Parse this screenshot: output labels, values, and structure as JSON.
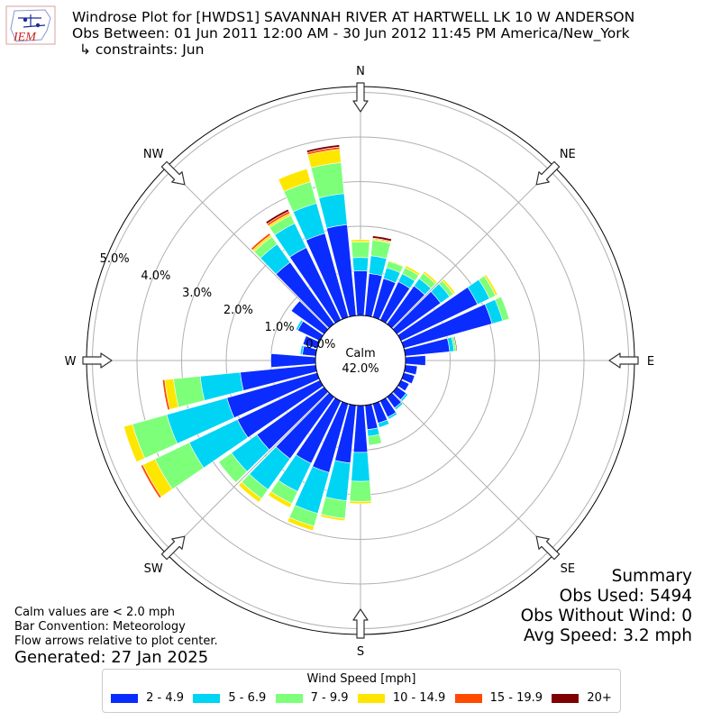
{
  "header": {
    "line1": "Windrose Plot for [HWDS1] SAVANNAH RIVER  AT HARTWELL LK 10 W ANDERSON",
    "line2": "Obs Between: 01 Jun 2011 12:00 AM - 30 Jun 2012 11:45 PM America/New_York",
    "line3": "↳ constraints: Jun"
  },
  "logo": {
    "text": "IEM",
    "color": "#cc2222"
  },
  "summary": {
    "title": "Summary",
    "obs_used": "Obs Used: 5494",
    "obs_without_wind": "Obs Without Wind: 0",
    "avg_speed": "Avg Speed: 3.2 mph"
  },
  "notes": {
    "calm": "Calm values are < 2.0 mph",
    "convention": "Bar Convention: Meteorology",
    "flow": "Flow arrows relative to plot center."
  },
  "generated": "Generated: 27 Jan 2025",
  "chart_data": {
    "type": "windrose",
    "calm": {
      "label": "Calm",
      "value": "42.0%"
    },
    "radial_ticks": [
      "0.0%",
      "1.0%",
      "2.0%",
      "3.0%",
      "4.0%",
      "5.0%"
    ],
    "compass": [
      {
        "label": "N",
        "deg": 0
      },
      {
        "label": "NE",
        "deg": 45
      },
      {
        "label": "E",
        "deg": 90
      },
      {
        "label": "SE",
        "deg": 135
      },
      {
        "label": "S",
        "deg": 180
      },
      {
        "label": "SW",
        "deg": 225
      },
      {
        "label": "W",
        "deg": 270
      },
      {
        "label": "NW",
        "deg": 315
      }
    ],
    "legend_title": "Wind Speed [mph]",
    "bins": [
      {
        "label": "2 - 4.9",
        "color": "#0a2cff"
      },
      {
        "label": "5 - 6.9",
        "color": "#00d4f4"
      },
      {
        "label": "7 - 9.9",
        "color": "#7dff7a"
      },
      {
        "label": "10 - 14.9",
        "color": "#ffe600"
      },
      {
        "label": "15 - 19.9",
        "color": "#ff4a00"
      },
      {
        "label": "20+",
        "color": "#7f0000"
      }
    ],
    "directions": [
      0,
      10,
      20,
      30,
      40,
      50,
      60,
      70,
      80,
      90,
      100,
      110,
      120,
      130,
      140,
      150,
      160,
      170,
      180,
      190,
      200,
      210,
      220,
      230,
      240,
      250,
      260,
      270,
      280,
      290,
      300,
      310,
      320,
      330,
      340,
      350
    ],
    "units": "percent of observations",
    "values": [
      [
        1.0,
        0.3,
        0.35,
        0.05,
        0.0,
        0.0
      ],
      [
        0.95,
        0.4,
        0.35,
        0.03,
        0.02,
        0.05
      ],
      [
        0.9,
        0.25,
        0.15,
        0.02,
        0.0,
        0.0
      ],
      [
        0.95,
        0.2,
        0.15,
        0.05,
        0.0,
        0.0
      ],
      [
        1.05,
        0.2,
        0.15,
        0.05,
        0.0,
        0.0
      ],
      [
        1.2,
        0.25,
        0.1,
        0.05,
        0.0,
        0.0
      ],
      [
        1.9,
        0.3,
        0.15,
        0.05,
        0.0,
        0.0
      ],
      [
        2.05,
        0.25,
        0.15,
        0.0,
        0.0,
        0.0
      ],
      [
        1.0,
        0.1,
        0.05,
        0.0,
        0.0,
        0.02
      ],
      [
        0.45,
        0.0,
        0.0,
        0.0,
        0.0,
        0.0
      ],
      [
        0.27,
        0.0,
        0.0,
        0.0,
        0.0,
        0.0
      ],
      [
        0.25,
        0.0,
        0.0,
        0.0,
        0.0,
        0.0
      ],
      [
        0.2,
        0.0,
        0.0,
        0.0,
        0.0,
        0.0
      ],
      [
        0.25,
        0.05,
        0.0,
        0.0,
        0.0,
        0.0
      ],
      [
        0.3,
        0.05,
        0.0,
        0.0,
        0.0,
        0.0
      ],
      [
        0.4,
        0.05,
        0.0,
        0.0,
        0.0,
        0.0
      ],
      [
        0.45,
        0.1,
        0.0,
        0.0,
        0.0,
        0.0
      ],
      [
        0.55,
        0.15,
        0.2,
        0.0,
        0.0,
        0.0
      ],
      [
        1.05,
        0.65,
        0.45,
        0.05,
        0.0,
        0.0
      ],
      [
        1.3,
        0.85,
        0.4,
        0.05,
        0.0,
        0.0
      ],
      [
        1.6,
        0.95,
        0.3,
        0.1,
        0.0,
        0.0
      ],
      [
        1.55,
        0.7,
        0.3,
        0.1,
        0.0,
        0.0
      ],
      [
        1.7,
        0.85,
        0.25,
        0.1,
        0.0,
        0.0
      ],
      [
        1.85,
        0.7,
        0.35,
        0.0,
        0.0,
        0.0
      ],
      [
        2.05,
        1.2,
        0.85,
        0.3,
        0.05,
        0.0
      ],
      [
        2.1,
        1.4,
        0.8,
        0.2,
        0.0,
        0.0
      ],
      [
        1.7,
        0.9,
        0.6,
        0.2,
        0.05,
        0.0
      ],
      [
        1.0,
        0.0,
        0.0,
        0.0,
        0.0,
        0.0
      ],
      [
        0.3,
        0.05,
        0.0,
        0.0,
        0.0,
        0.0
      ],
      [
        0.33,
        0.0,
        0.0,
        0.0,
        0.0,
        0.0
      ],
      [
        0.55,
        0.05,
        0.0,
        0.0,
        0.0,
        0.0
      ],
      [
        0.9,
        0.0,
        0.0,
        0.0,
        0.0,
        0.0
      ],
      [
        1.7,
        0.5,
        0.2,
        0.05,
        0.05,
        0.0
      ],
      [
        1.8,
        0.6,
        0.2,
        0.05,
        0.05,
        0.05
      ],
      [
        1.95,
        0.7,
        0.5,
        0.3,
        0.0,
        0.0
      ],
      [
        2.05,
        0.7,
        0.7,
        0.3,
        0.05,
        0.05
      ]
    ]
  }
}
